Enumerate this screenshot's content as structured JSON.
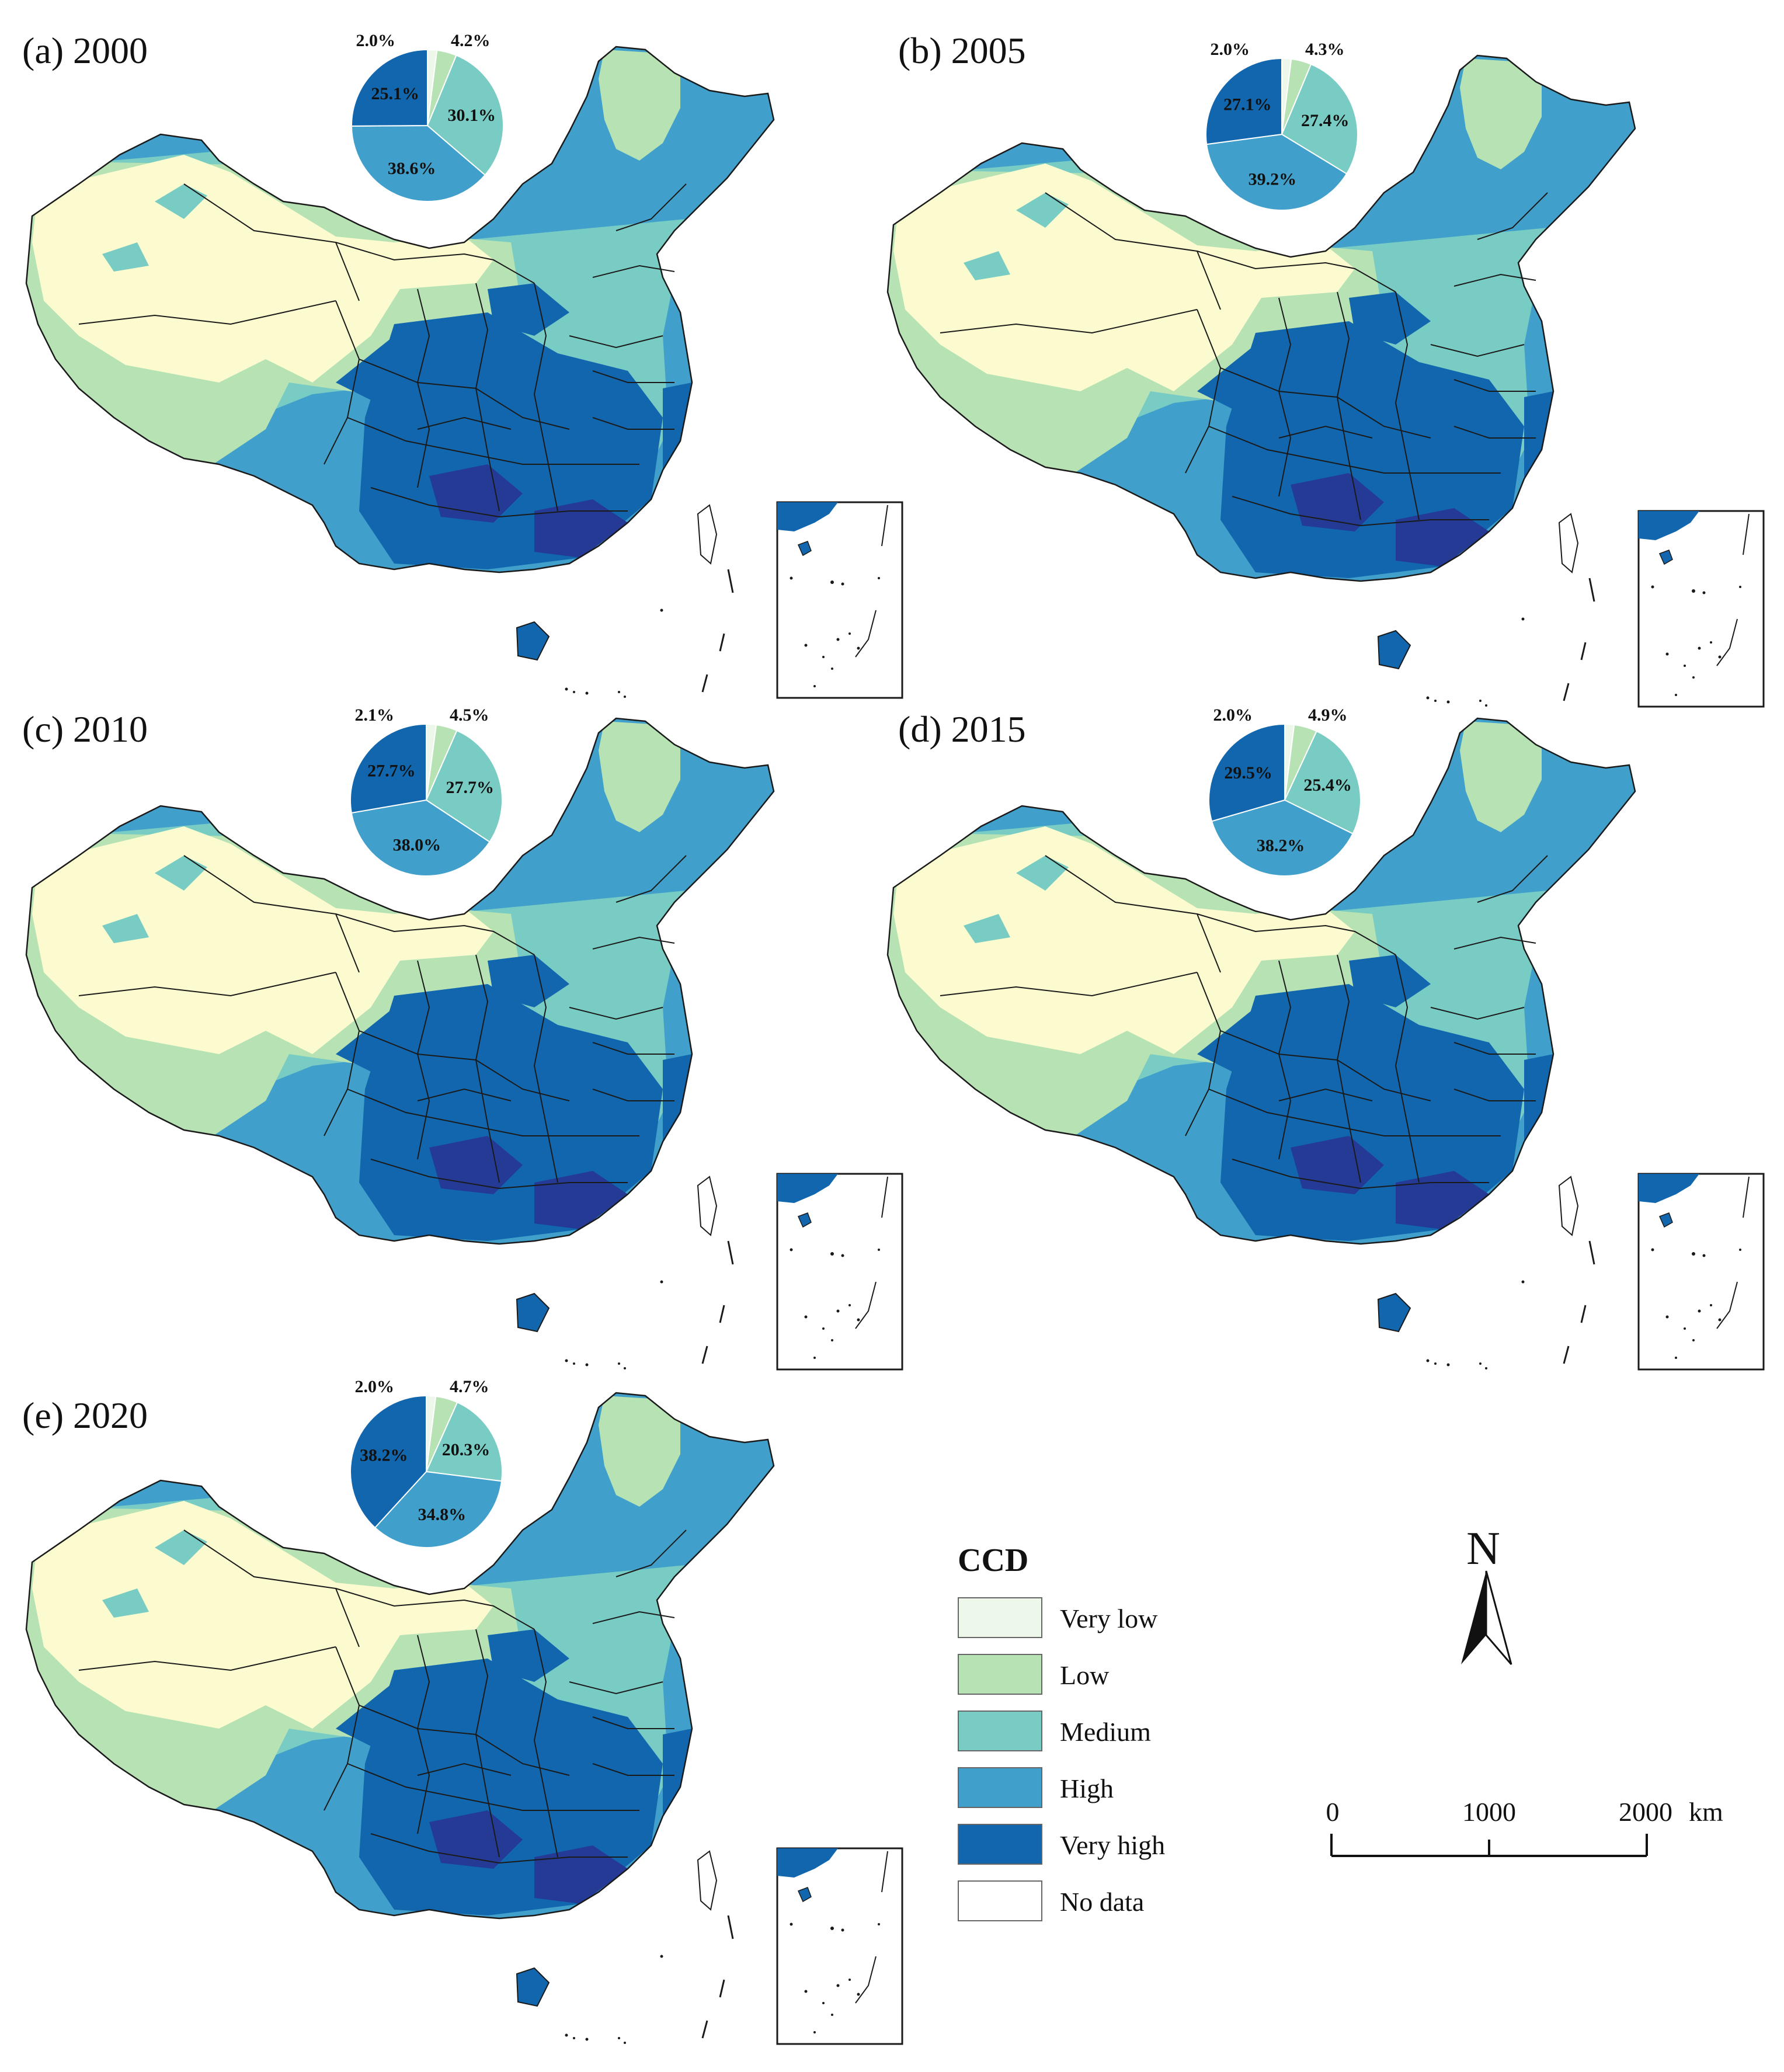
{
  "palette": {
    "very_low": "#eef8ea",
    "low": "#b7e2b4",
    "medium": "#79ccc3",
    "high": "#41a0cb",
    "very_high": "#1166ad",
    "no_data": "#ffffff",
    "desert": "#fbfbcf",
    "hotspot": "#243a94",
    "boundary": "#1a1a1a"
  },
  "panels": [
    {
      "label": "(a) 2000",
      "pie": [
        {
          "class": "Very low",
          "value": 2.0,
          "text": "2.0%"
        },
        {
          "class": "Low",
          "value": 4.2,
          "text": "4.2%"
        },
        {
          "class": "Medium",
          "value": 30.1,
          "text": "30.1%"
        },
        {
          "class": "High",
          "value": 38.6,
          "text": "38.6%"
        },
        {
          "class": "Very high",
          "value": 25.1,
          "text": "25.1%"
        }
      ]
    },
    {
      "label": "(b) 2005",
      "pie": [
        {
          "class": "Very low",
          "value": 2.0,
          "text": "2.0%"
        },
        {
          "class": "Low",
          "value": 4.3,
          "text": "4.3%"
        },
        {
          "class": "Medium",
          "value": 27.4,
          "text": "27.4%"
        },
        {
          "class": "High",
          "value": 39.2,
          "text": "39.2%"
        },
        {
          "class": "Very high",
          "value": 27.1,
          "text": "27.1%"
        }
      ]
    },
    {
      "label": "(c) 2010",
      "pie": [
        {
          "class": "Very low",
          "value": 2.1,
          "text": "2.1%"
        },
        {
          "class": "Low",
          "value": 4.5,
          "text": "4.5%"
        },
        {
          "class": "Medium",
          "value": 27.7,
          "text": "27.7%"
        },
        {
          "class": "High",
          "value": 38.0,
          "text": "38.0%"
        },
        {
          "class": "Very high",
          "value": 27.7,
          "text": "27.7%"
        }
      ]
    },
    {
      "label": "(d) 2015",
      "pie": [
        {
          "class": "Very low",
          "value": 2.0,
          "text": "2.0%"
        },
        {
          "class": "Low",
          "value": 4.9,
          "text": "4.9%"
        },
        {
          "class": "Medium",
          "value": 25.4,
          "text": "25.4%"
        },
        {
          "class": "High",
          "value": 38.2,
          "text": "38.2%"
        },
        {
          "class": "Very high",
          "value": 29.5,
          "text": "29.5%"
        }
      ]
    },
    {
      "label": "(e) 2020",
      "pie": [
        {
          "class": "Very low",
          "value": 2.0,
          "text": "2.0%"
        },
        {
          "class": "Low",
          "value": 4.7,
          "text": "4.7%"
        },
        {
          "class": "Medium",
          "value": 20.3,
          "text": "20.3%"
        },
        {
          "class": "High",
          "value": 34.8,
          "text": "34.8%"
        },
        {
          "class": "Very high",
          "value": 38.2,
          "text": "38.2%"
        }
      ]
    }
  ],
  "legend": {
    "title": "CCD",
    "items": [
      {
        "label": "Very low",
        "color": "#eef8ea"
      },
      {
        "label": "Low",
        "color": "#b7e2b4"
      },
      {
        "label": "Medium",
        "color": "#79ccc3"
      },
      {
        "label": "High",
        "color": "#41a0cb"
      },
      {
        "label": "Very high",
        "color": "#1166ad"
      },
      {
        "label": "No data",
        "color": "#ffffff"
      }
    ]
  },
  "north_arrow": {
    "label": "N"
  },
  "scale_bar": {
    "ticks": [
      "0",
      "1000",
      "2000"
    ],
    "unit": "km"
  }
}
